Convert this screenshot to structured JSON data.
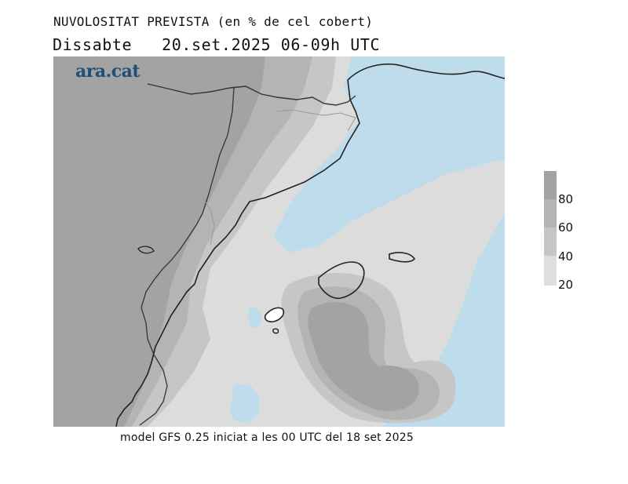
{
  "header": {
    "title": "NUVOLOSITAT PREVISTA (en % de cel cobert)",
    "day": "Dissabte",
    "datetime": "20.set.2025 06-09h UTC"
  },
  "logo": "ara.cat",
  "legend": {
    "labels": [
      "80",
      "60",
      "40",
      "20"
    ],
    "colors": [
      "#a3a3a3",
      "#b4b4b4",
      "#c6c6c6",
      "#dedede"
    ]
  },
  "colors": {
    "sea_clear": "#bfdcec",
    "cover_20_40": "#dcdcdc",
    "cover_40_60": "#c6c6c6",
    "cover_60_80": "#b4b4b4",
    "cover_80_plus": "#a3a3a3",
    "coastline": "#222222"
  },
  "footer": "model GFS 0.25 iniciat a les 00 UTC del 18 set 2025"
}
